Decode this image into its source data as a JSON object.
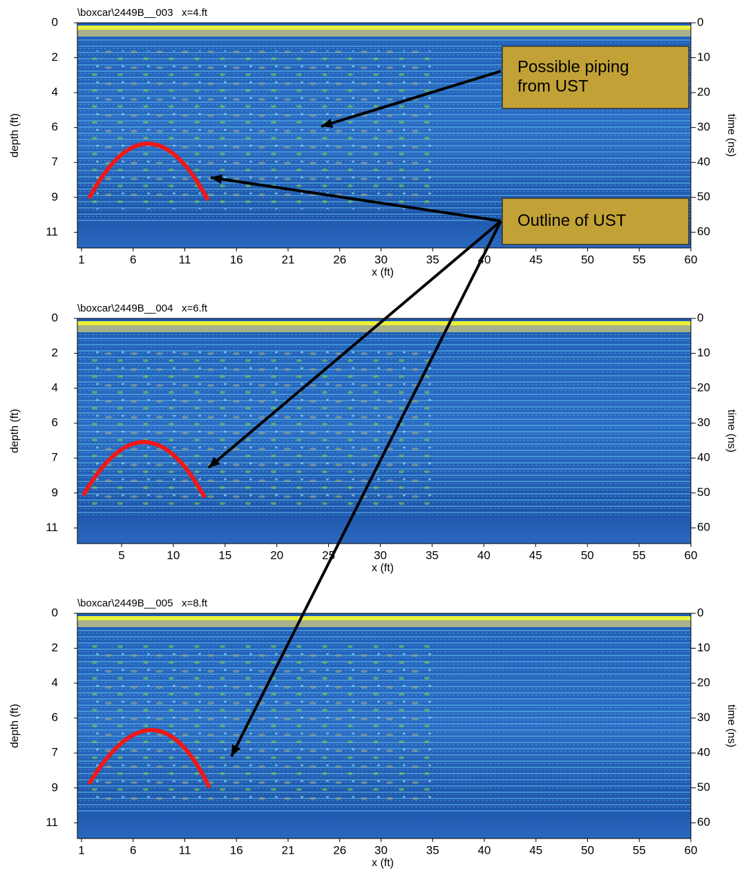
{
  "panels": [
    {
      "title": "\\boxcar\\2449B__003   x=4.ft",
      "xlabel": "x (ft)",
      "ylabel": "depth (ft)",
      "y2label": "time (ns)",
      "xlim": [
        0.6,
        60
      ],
      "xticks": [
        1,
        6,
        11,
        16,
        21,
        26,
        30,
        35,
        40,
        45,
        50,
        55,
        60
      ],
      "ylim": [
        0,
        11.93
      ],
      "yticks": [
        {
          "value": 0,
          "label": "0"
        },
        {
          "value": 1.85,
          "label": "2"
        },
        {
          "value": 3.7,
          "label": "4"
        },
        {
          "value": 5.55,
          "label": "6"
        },
        {
          "value": 7.4,
          "label": "7"
        },
        {
          "value": 9.25,
          "label": "9"
        },
        {
          "value": 11.1,
          "label": "11"
        }
      ],
      "y2lim": [
        0,
        64.5
      ],
      "y2ticks": [
        0,
        10,
        20,
        30,
        40,
        50,
        60
      ]
    },
    {
      "title": "\\boxcar\\2449B__004   x=6.ft",
      "xlabel": "x (ft)",
      "ylabel": "depth (ft)",
      "y2label": "time (ns)",
      "xlim": [
        0.73,
        60
      ],
      "xticks": [
        5,
        10,
        15,
        20,
        25,
        30,
        35,
        40,
        45,
        50,
        55,
        60
      ],
      "ylim": [
        0,
        11.93
      ],
      "yticks": [
        {
          "value": 0,
          "label": "0"
        },
        {
          "value": 1.85,
          "label": "2"
        },
        {
          "value": 3.7,
          "label": "4"
        },
        {
          "value": 5.55,
          "label": "6"
        },
        {
          "value": 7.4,
          "label": "7"
        },
        {
          "value": 9.25,
          "label": "9"
        },
        {
          "value": 11.1,
          "label": "11"
        }
      ],
      "y2lim": [
        0,
        64.5
      ],
      "y2ticks": [
        0,
        10,
        20,
        30,
        40,
        50,
        60
      ]
    },
    {
      "title": "\\boxcar\\2449B__005   x=8.ft",
      "xlabel": "x (ft)",
      "ylabel": "depth (ft)",
      "y2label": "time (ns)",
      "xlim": [
        0.6,
        60
      ],
      "xticks": [
        1,
        6,
        11,
        16,
        21,
        26,
        30,
        35,
        40,
        45,
        50,
        55,
        60
      ],
      "ylim": [
        0,
        11.93
      ],
      "yticks": [
        {
          "value": 0,
          "label": "0"
        },
        {
          "value": 1.85,
          "label": "2"
        },
        {
          "value": 3.7,
          "label": "4"
        },
        {
          "value": 5.55,
          "label": "6"
        },
        {
          "value": 7.4,
          "label": "7"
        },
        {
          "value": 9.25,
          "label": "9"
        },
        {
          "value": 11.1,
          "label": "11"
        }
      ],
      "y2lim": [
        0,
        64.5
      ],
      "y2ticks": [
        0,
        10,
        20,
        30,
        40,
        50,
        60
      ]
    }
  ],
  "annotations": [
    {
      "lines": [
        "Possible piping",
        "from UST"
      ]
    },
    {
      "lines": [
        "Outline of UST"
      ]
    }
  ]
}
